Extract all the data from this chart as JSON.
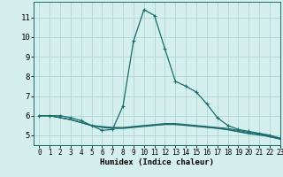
{
  "xlabel": "Humidex (Indice chaleur)",
  "xlim": [
    -0.5,
    23
  ],
  "ylim": [
    4.5,
    11.8
  ],
  "yticks": [
    5,
    6,
    7,
    8,
    9,
    10,
    11
  ],
  "xticks": [
    0,
    1,
    2,
    3,
    4,
    5,
    6,
    7,
    8,
    9,
    10,
    11,
    12,
    13,
    14,
    15,
    16,
    17,
    18,
    19,
    20,
    21,
    22,
    23
  ],
  "bg_color": "#d5eeee",
  "grid_color": "#aed4d4",
  "line_color": "#1a6b6b",
  "lines": [
    {
      "x": [
        0,
        1,
        2,
        3,
        4,
        5,
        6,
        7,
        8,
        9,
        10,
        11,
        12,
        13,
        14,
        15,
        16,
        17,
        18,
        19,
        20,
        21,
        22,
        23
      ],
      "y": [
        6.0,
        6.0,
        6.0,
        5.9,
        5.75,
        5.5,
        5.25,
        5.3,
        6.5,
        9.8,
        11.4,
        11.1,
        9.4,
        7.75,
        7.5,
        7.2,
        6.6,
        5.9,
        5.5,
        5.3,
        5.2,
        5.1,
        5.0,
        4.85
      ],
      "marker": true
    },
    {
      "x": [
        0,
        1,
        2,
        3,
        4,
        5,
        6,
        7,
        8,
        9,
        10,
        11,
        12,
        13,
        14,
        15,
        16,
        17,
        18,
        19,
        20,
        21,
        22,
        23
      ],
      "y": [
        6.0,
        6.0,
        5.9,
        5.8,
        5.65,
        5.5,
        5.45,
        5.4,
        5.4,
        5.45,
        5.5,
        5.55,
        5.6,
        5.6,
        5.55,
        5.5,
        5.45,
        5.4,
        5.35,
        5.25,
        5.15,
        5.1,
        5.0,
        4.85
      ],
      "marker": false
    },
    {
      "x": [
        0,
        1,
        2,
        3,
        4,
        5,
        6,
        7,
        8,
        9,
        10,
        11,
        12,
        13,
        14,
        15,
        16,
        17,
        18,
        19,
        20,
        21,
        22,
        23
      ],
      "y": [
        6.0,
        6.0,
        5.9,
        5.8,
        5.65,
        5.5,
        5.42,
        5.38,
        5.38,
        5.42,
        5.48,
        5.52,
        5.56,
        5.56,
        5.52,
        5.47,
        5.42,
        5.37,
        5.3,
        5.2,
        5.1,
        5.05,
        4.95,
        4.82
      ],
      "marker": false
    },
    {
      "x": [
        0,
        1,
        2,
        3,
        4,
        5,
        6,
        7,
        8,
        9,
        10,
        11,
        12,
        13,
        14,
        15,
        16,
        17,
        18,
        19,
        20,
        21,
        22,
        23
      ],
      "y": [
        6.0,
        6.0,
        5.9,
        5.8,
        5.65,
        5.5,
        5.4,
        5.35,
        5.35,
        5.4,
        5.45,
        5.5,
        5.55,
        5.55,
        5.5,
        5.45,
        5.4,
        5.35,
        5.28,
        5.18,
        5.08,
        5.02,
        4.92,
        4.8
      ],
      "marker": false
    }
  ]
}
